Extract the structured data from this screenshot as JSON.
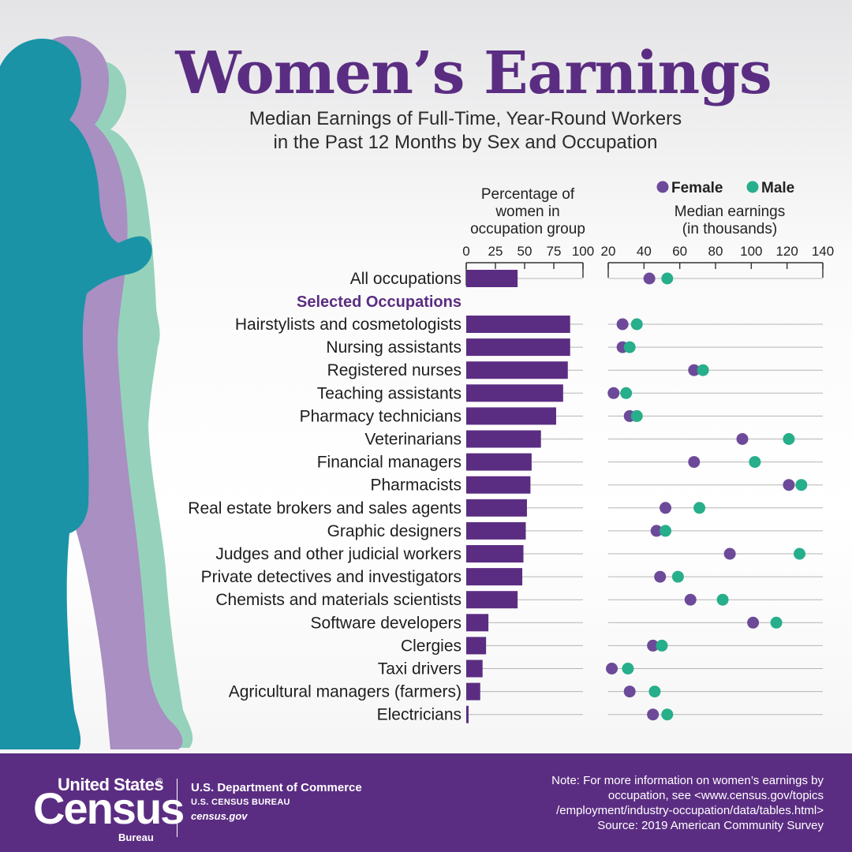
{
  "header": {
    "title": "Women’s Earnings",
    "subtitle_line1": "Median Earnings of Full-Time, Year-Round Workers",
    "subtitle_line2": "in the Past 12 Months by Sex and Occupation"
  },
  "colors": {
    "purple": "#5b2d82",
    "female": "#6c4a99",
    "male": "#27ae8a",
    "silhouette_teal": "#1a93a6",
    "silhouette_lavender": "#a98fc2",
    "silhouette_mint": "#96d2bb"
  },
  "chart_data": {
    "type": "bar+dot",
    "left_panel": {
      "title_lines": [
        "Percentage of",
        "women in",
        "occupation group"
      ],
      "ticks": [
        0,
        25,
        50,
        75,
        100
      ],
      "xlim": [
        0,
        100
      ]
    },
    "right_panel": {
      "title_lines": [
        "Median earnings",
        "(in thousands)"
      ],
      "ticks": [
        20,
        40,
        60,
        80,
        100,
        120,
        140
      ],
      "xlim": [
        20,
        140
      ]
    },
    "legend": [
      {
        "name": "Female",
        "color": "#6c4a99"
      },
      {
        "name": "Male",
        "color": "#27ae8a"
      }
    ],
    "section_label": "Selected Occupations",
    "rows": [
      {
        "label": "All occupations",
        "pct_women": 44,
        "female": 43,
        "male": 53
      },
      {
        "label": "Hairstylists and cosmetologists",
        "pct_women": 89,
        "female": 28,
        "male": 36
      },
      {
        "label": "Nursing assistants",
        "pct_women": 89,
        "female": 28,
        "male": 32
      },
      {
        "label": "Registered nurses",
        "pct_women": 87,
        "female": 68,
        "male": 73
      },
      {
        "label": "Teaching assistants",
        "pct_women": 83,
        "female": 23,
        "male": 30
      },
      {
        "label": "Pharmacy technicians",
        "pct_women": 77,
        "female": 32,
        "male": 36
      },
      {
        "label": "Veterinarians",
        "pct_women": 64,
        "female": 95,
        "male": 121
      },
      {
        "label": "Financial managers",
        "pct_women": 56,
        "female": 68,
        "male": 102
      },
      {
        "label": "Pharmacists",
        "pct_women": 55,
        "female": 121,
        "male": 128
      },
      {
        "label": "Real estate brokers and sales agents",
        "pct_women": 52,
        "female": 52,
        "male": 71
      },
      {
        "label": "Graphic designers",
        "pct_women": 51,
        "female": 47,
        "male": 52
      },
      {
        "label": "Judges and other judicial workers",
        "pct_women": 49,
        "female": 88,
        "male": 127
      },
      {
        "label": "Private detectives and investigators",
        "pct_women": 48,
        "female": 49,
        "male": 59
      },
      {
        "label": "Chemists and materials scientists",
        "pct_women": 44,
        "female": 66,
        "male": 84
      },
      {
        "label": "Software developers",
        "pct_women": 19,
        "female": 101,
        "male": 114
      },
      {
        "label": "Clergies",
        "pct_women": 17,
        "female": 45,
        "male": 50
      },
      {
        "label": "Taxi drivers",
        "pct_women": 14,
        "female": 22,
        "male": 31
      },
      {
        "label": "Agricultural managers (farmers)",
        "pct_women": 12,
        "female": 32,
        "male": 46
      },
      {
        "label": "Electricians",
        "pct_women": 2,
        "female": 45,
        "male": 53
      }
    ]
  },
  "footer": {
    "logo_line1": "United States",
    "logo_registered": "®",
    "logo_line2": "Census",
    "logo_line3": "Bureau",
    "dept_line1": "U.S. Department of Commerce",
    "dept_line2": "U.S. CENSUS BUREAU",
    "dept_line3": "census.gov",
    "note_line1": "Note: For more information on women’s earnings by",
    "note_line2": "occupation, see <www.census.gov/topics",
    "note_line3": "/employment/industry-occupation/data/tables.html>",
    "note_line4": "Source: 2019 American Community Survey"
  }
}
